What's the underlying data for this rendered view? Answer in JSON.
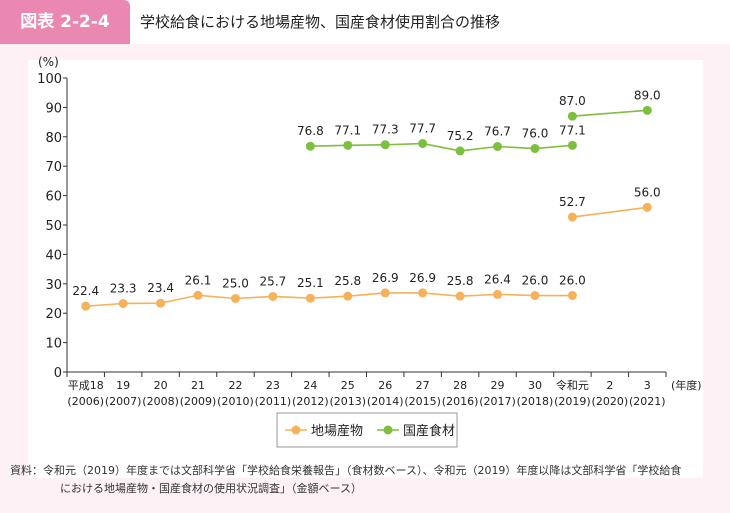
{
  "header": {
    "figure_label": "図表 2-2-4",
    "title": "学校給食における地場産物、国産食材使用割合の推移"
  },
  "chart_data": {
    "type": "line",
    "title": "学校給食における地場産物、国産食材使用割合の推移",
    "ylabel": "(%)",
    "xlabel": "(年度)",
    "ylim": [
      0,
      100
    ],
    "yticks": [
      "0",
      "10",
      "20",
      "30",
      "40",
      "50",
      "60",
      "70",
      "80",
      "90",
      "100"
    ],
    "categories": [
      [
        "平成18",
        "(2006)"
      ],
      [
        "19",
        "(2007)"
      ],
      [
        "20",
        "(2008)"
      ],
      [
        "21",
        "(2009)"
      ],
      [
        "22",
        "(2010)"
      ],
      [
        "23",
        "(2011)"
      ],
      [
        "24",
        "(2012)"
      ],
      [
        "25",
        "(2013)"
      ],
      [
        "26",
        "(2014)"
      ],
      [
        "27",
        "(2015)"
      ],
      [
        "28",
        "(2016)"
      ],
      [
        "29",
        "(2017)"
      ],
      [
        "30",
        "(2018)"
      ],
      [
        "令和元",
        "(2019)"
      ],
      [
        "2",
        "(2020)"
      ],
      [
        "3",
        "(2021)"
      ]
    ],
    "series": [
      {
        "name": "地場産物",
        "color": "#f5b25a",
        "segments": [
          {
            "start": 0,
            "values": [
              22.4,
              23.3,
              23.4,
              26.1,
              25.0,
              25.7,
              25.1,
              25.8,
              26.9,
              26.9,
              25.8,
              26.4,
              26.0,
              26.0
            ]
          },
          {
            "indices": [
              13,
              15
            ],
            "values": [
              52.7,
              56.0
            ]
          }
        ]
      },
      {
        "name": "国産食材",
        "color": "#7dbf3e",
        "segments": [
          {
            "start": 6,
            "values": [
              76.8,
              77.1,
              77.3,
              77.7,
              75.2,
              76.7,
              76.0,
              77.1
            ]
          },
          {
            "indices": [
              13,
              15
            ],
            "values": [
              87.0,
              89.0
            ]
          }
        ]
      }
    ],
    "legend": "bottom-center",
    "grid": false
  },
  "note": {
    "line1": "資料：令和元（2019）年度までは文部科学省「学校給食栄養報告」（食材数ベース）、令和元（2019）年度以降は文部科学省「学校給食",
    "line2": "における地場産物・国産食材の使用状況調査」（金額ベース）"
  }
}
